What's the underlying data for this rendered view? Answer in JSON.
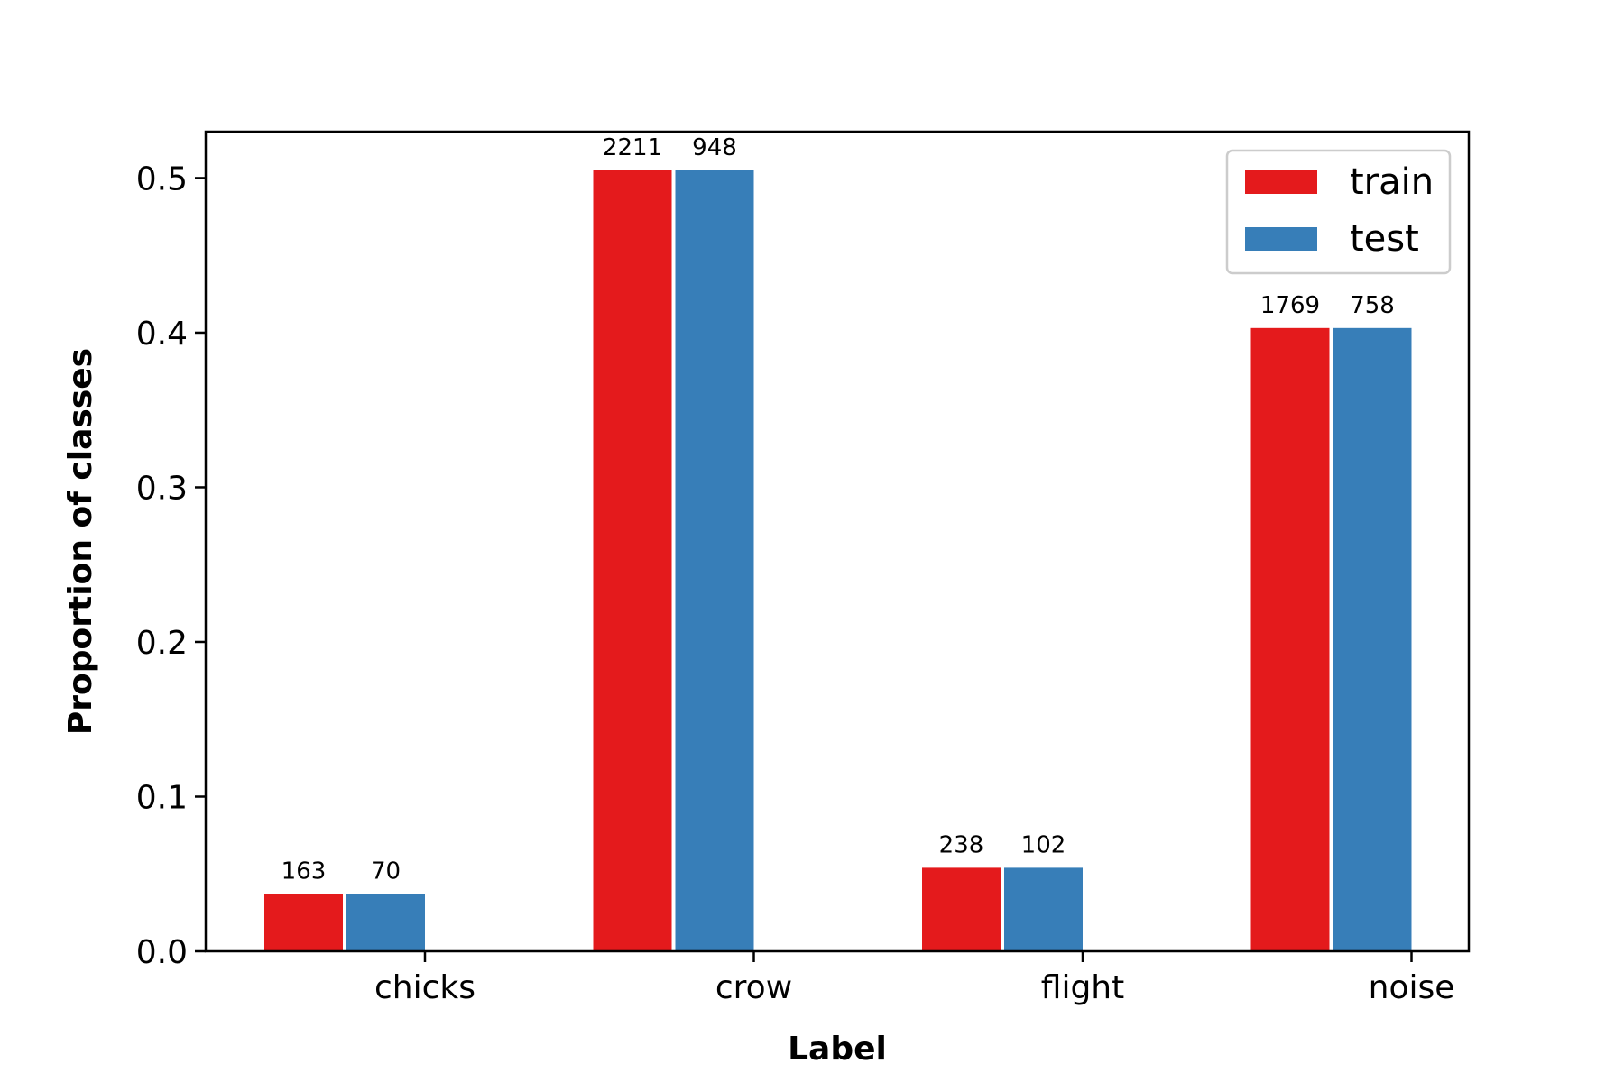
{
  "chart_data": {
    "type": "bar",
    "title": "",
    "xlabel": "Label",
    "ylabel": "Proportion of classes",
    "categories": [
      "chicks",
      "crow",
      "flight",
      "noise"
    ],
    "ylim": [
      0,
      0.53
    ],
    "yticks": [
      "0.0",
      "0.1",
      "0.2",
      "0.3",
      "0.4",
      "0.5"
    ],
    "grid": false,
    "legend_position": "top-right",
    "series": [
      {
        "name": "train",
        "color": "#e41a1c",
        "values": [
          0.037,
          0.505,
          0.054,
          0.403
        ],
        "labels": [
          "163",
          "2211",
          "238",
          "1769"
        ]
      },
      {
        "name": "test",
        "color": "#377eb8",
        "values": [
          0.037,
          0.505,
          0.054,
          0.403
        ],
        "labels": [
          "70",
          "948",
          "102",
          "758"
        ]
      }
    ]
  }
}
